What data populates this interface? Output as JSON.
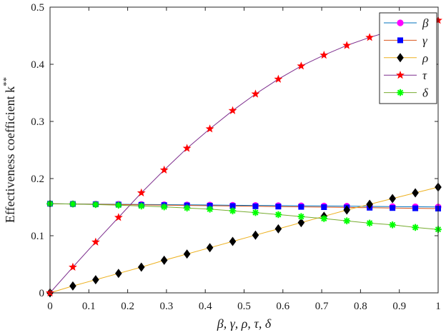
{
  "chart_data": {
    "type": "line",
    "xlabel": "β, γ, ρ, τ, δ",
    "ylabel": "Effectiveness coefficient k",
    "ylabel_superscript": "**",
    "xlim": [
      0,
      1
    ],
    "ylim": [
      0,
      0.5
    ],
    "x_ticks": [
      0,
      0.1,
      0.2,
      0.3,
      0.4,
      0.5,
      0.6,
      0.7,
      0.8,
      0.9,
      1
    ],
    "x_tick_labels": [
      "0",
      "0.1",
      "0.2",
      "0.3",
      "0.4",
      "0.5",
      "0.6",
      "0.7",
      "0.8",
      "0.9",
      "1"
    ],
    "y_ticks": [
      0,
      0.1,
      0.2,
      0.3,
      0.4,
      0.5
    ],
    "y_tick_labels": [
      "0",
      "0.1",
      "0.2",
      "0.3",
      "0.4",
      "0.5"
    ],
    "grid": false,
    "legend_position": "top-right",
    "x": [
      0,
      0.0588,
      0.1176,
      0.1765,
      0.2353,
      0.2941,
      0.3529,
      0.4118,
      0.4706,
      0.5294,
      0.5882,
      0.6471,
      0.7059,
      0.7647,
      0.8235,
      0.8824,
      0.9412,
      1
    ],
    "series": [
      {
        "name": "β",
        "color": "#0072BD",
        "marker": "circle",
        "marker_color": "#ff00ff",
        "values": [
          0.156,
          0.1557,
          0.1553,
          0.155,
          0.1547,
          0.1543,
          0.154,
          0.1537,
          0.1533,
          0.153,
          0.1527,
          0.1523,
          0.152,
          0.1517,
          0.1513,
          0.151,
          0.1507,
          0.1503
        ]
      },
      {
        "name": "γ",
        "color": "#D95319",
        "marker": "square",
        "marker_color": "#0000ff",
        "values": [
          0.156,
          0.1555,
          0.155,
          0.1545,
          0.154,
          0.1535,
          0.153,
          0.1525,
          0.152,
          0.1515,
          0.151,
          0.1505,
          0.15,
          0.1495,
          0.149,
          0.1485,
          0.148,
          0.1475
        ]
      },
      {
        "name": "ρ",
        "color": "#EDB120",
        "marker": "diamond",
        "marker_color": "#000000",
        "values": [
          0,
          0.012,
          0.023,
          0.034,
          0.045,
          0.057,
          0.068,
          0.079,
          0.09,
          0.101,
          0.112,
          0.123,
          0.134,
          0.145,
          0.155,
          0.165,
          0.175,
          0.185
        ]
      },
      {
        "name": "τ",
        "color": "#7E2F8E",
        "marker": "star5",
        "marker_color": "#ff0000",
        "values": [
          0,
          0.045,
          0.089,
          0.132,
          0.175,
          0.215,
          0.253,
          0.287,
          0.319,
          0.348,
          0.374,
          0.397,
          0.416,
          0.433,
          0.447,
          0.459,
          0.469,
          0.477
        ]
      },
      {
        "name": "δ",
        "color": "#77AC30",
        "marker": "asterisk",
        "marker_color": "#00ff00",
        "values": [
          0.156,
          0.1555,
          0.1545,
          0.1535,
          0.152,
          0.1505,
          0.1485,
          0.1465,
          0.1435,
          0.1405,
          0.137,
          0.1335,
          0.13,
          0.126,
          0.122,
          0.119,
          0.1145,
          0.111
        ]
      }
    ]
  }
}
